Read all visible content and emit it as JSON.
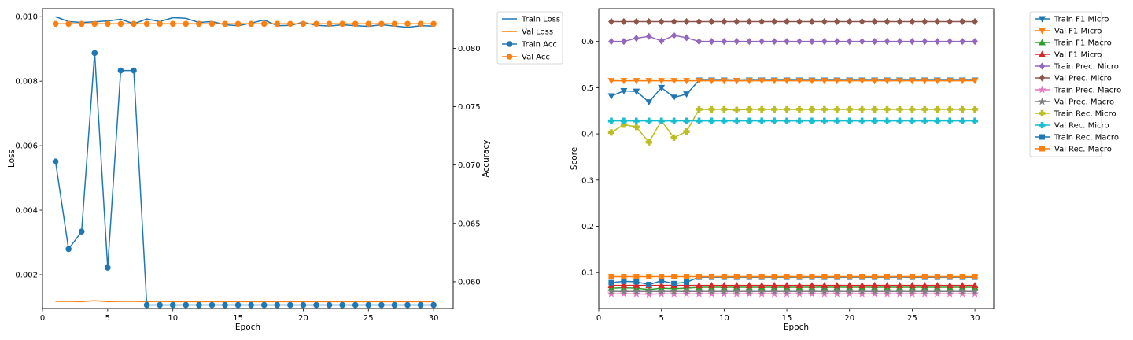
{
  "chart_data": [
    {
      "type": "line",
      "xlabel": "Epoch",
      "ylabel": "Loss",
      "ylabel_right": "Accuracy",
      "xlim": [
        0.0,
        31.5
      ],
      "ylim": [
        0.00095,
        0.01025
      ],
      "ylim_right": [
        0.0577,
        0.0834
      ],
      "xticks": [
        0,
        5,
        10,
        15,
        20,
        25,
        30
      ],
      "yticks": [
        0.002,
        0.004,
        0.006,
        0.008,
        0.01
      ],
      "ytick_labels": [
        "0.002",
        "0.004",
        "0.006",
        "0.008",
        "0.010"
      ],
      "yticks_right": [
        0.06,
        0.065,
        0.07,
        0.075,
        0.08
      ],
      "ytick_labels_right": [
        "0.060",
        "0.065",
        "0.070",
        "0.075",
        "0.080"
      ],
      "legend_position": "outside-right-top",
      "x": [
        1,
        2,
        3,
        4,
        5,
        6,
        7,
        8,
        9,
        10,
        11,
        12,
        13,
        14,
        15,
        16,
        17,
        18,
        19,
        20,
        21,
        22,
        23,
        24,
        25,
        26,
        27,
        28,
        29,
        30
      ],
      "series": [
        {
          "name": "Train Loss",
          "axis": "left",
          "color": "#1f77b4",
          "marker": "none",
          "values": [
            0.01,
            0.00985,
            0.00982,
            0.00984,
            0.00987,
            0.00992,
            0.00978,
            0.00993,
            0.00985,
            0.00997,
            0.00995,
            0.00982,
            0.00985,
            0.00975,
            0.00972,
            0.0098,
            0.0099,
            0.00972,
            0.00973,
            0.00983,
            0.00973,
            0.00971,
            0.00975,
            0.00972,
            0.0097,
            0.00975,
            0.00971,
            0.00967,
            0.00972,
            0.00971
          ]
        },
        {
          "name": "Val Loss",
          "axis": "left",
          "color": "#ff7f0e",
          "marker": "none",
          "values": [
            0.00117,
            0.00117,
            0.00116,
            0.00119,
            0.00116,
            0.00117,
            0.00117,
            0.00116,
            0.00117,
            0.00116,
            0.00116,
            0.00116,
            0.00116,
            0.00116,
            0.00116,
            0.00116,
            0.00116,
            0.00116,
            0.00116,
            0.00116,
            0.00116,
            0.00116,
            0.00116,
            0.00116,
            0.00116,
            0.00116,
            0.00116,
            0.00116,
            0.00116,
            0.00116
          ]
        },
        {
          "name": "Train Acc",
          "axis": "right",
          "color": "#1f77b4",
          "marker": "circle",
          "values": [
            0.0703,
            0.0628,
            0.0643,
            0.0796,
            0.0612,
            0.0781,
            0.0781,
            0.058,
            0.058,
            0.058,
            0.058,
            0.058,
            0.058,
            0.058,
            0.058,
            0.058,
            0.058,
            0.058,
            0.058,
            0.058,
            0.058,
            0.058,
            0.058,
            0.058,
            0.058,
            0.058,
            0.058,
            0.058,
            0.058,
            0.058
          ]
        },
        {
          "name": "Val Acc",
          "axis": "right",
          "color": "#ff7f0e",
          "marker": "circle",
          "values": [
            0.0821,
            0.0821,
            0.0821,
            0.0821,
            0.0821,
            0.0821,
            0.0821,
            0.0821,
            0.0821,
            0.0821,
            0.0821,
            0.0821,
            0.0821,
            0.0821,
            0.0821,
            0.0821,
            0.0821,
            0.0821,
            0.0821,
            0.0821,
            0.0821,
            0.0821,
            0.0821,
            0.0821,
            0.0821,
            0.0821,
            0.0821,
            0.0821,
            0.0821,
            0.0821
          ]
        }
      ]
    },
    {
      "type": "line",
      "xlabel": "Epoch",
      "ylabel": "Score",
      "xlim": [
        0.0,
        31.5
      ],
      "ylim": [
        0.022,
        0.671
      ],
      "xticks": [
        0,
        5,
        10,
        15,
        20,
        25,
        30
      ],
      "yticks": [
        0.1,
        0.2,
        0.3,
        0.4,
        0.5,
        0.6
      ],
      "ytick_labels": [
        "0.1",
        "0.2",
        "0.3",
        "0.4",
        "0.5",
        "0.6"
      ],
      "legend_position": "outside-right-top",
      "x": [
        1,
        2,
        3,
        4,
        5,
        6,
        7,
        8,
        9,
        10,
        11,
        12,
        13,
        14,
        15,
        16,
        17,
        18,
        19,
        20,
        21,
        22,
        23,
        24,
        25,
        26,
        27,
        28,
        29,
        30
      ],
      "series": [
        {
          "name": "Train F1 Micro",
          "color": "#1f77b4",
          "marker": "triangle_down",
          "values": [
            0.482,
            0.493,
            0.492,
            0.469,
            0.5,
            0.479,
            0.486,
            0.516,
            0.516,
            0.516,
            0.515,
            0.516,
            0.516,
            0.516,
            0.516,
            0.516,
            0.516,
            0.516,
            0.516,
            0.516,
            0.516,
            0.516,
            0.516,
            0.516,
            0.516,
            0.516,
            0.516,
            0.516,
            0.516,
            0.516
          ]
        },
        {
          "name": "Val F1 Micro",
          "color": "#ff7f0e",
          "marker": "triangle_down",
          "values": [
            0.515,
            0.515,
            0.515,
            0.515,
            0.515,
            0.515,
            0.515,
            0.515,
            0.515,
            0.515,
            0.515,
            0.515,
            0.515,
            0.515,
            0.515,
            0.515,
            0.515,
            0.515,
            0.515,
            0.515,
            0.515,
            0.515,
            0.515,
            0.515,
            0.515,
            0.515,
            0.515,
            0.515,
            0.515,
            0.515
          ]
        },
        {
          "name": "Train F1 Macro",
          "color": "#2ca02c",
          "marker": "triangle_up",
          "values": [
            0.066,
            0.067,
            0.066,
            0.063,
            0.066,
            0.065,
            0.066,
            0.068,
            0.068,
            0.068,
            0.068,
            0.068,
            0.068,
            0.068,
            0.068,
            0.068,
            0.068,
            0.068,
            0.068,
            0.068,
            0.068,
            0.068,
            0.068,
            0.068,
            0.068,
            0.068,
            0.068,
            0.068,
            0.068,
            0.068
          ]
        },
        {
          "name": "Val F1 Micro",
          "color": "#d62728",
          "marker": "triangle_up",
          "values": [
            0.072,
            0.072,
            0.072,
            0.072,
            0.072,
            0.072,
            0.072,
            0.072,
            0.072,
            0.072,
            0.072,
            0.072,
            0.072,
            0.072,
            0.072,
            0.072,
            0.072,
            0.072,
            0.072,
            0.072,
            0.072,
            0.072,
            0.072,
            0.072,
            0.072,
            0.072,
            0.072,
            0.072,
            0.072,
            0.072
          ]
        },
        {
          "name": "Train Prec. Micro",
          "color": "#9467bd",
          "marker": "diamond",
          "values": [
            0.6,
            0.6,
            0.607,
            0.611,
            0.601,
            0.613,
            0.608,
            0.6,
            0.6,
            0.6,
            0.6,
            0.6,
            0.6,
            0.6,
            0.6,
            0.6,
            0.6,
            0.6,
            0.6,
            0.6,
            0.6,
            0.6,
            0.6,
            0.6,
            0.6,
            0.6,
            0.6,
            0.6,
            0.6,
            0.6
          ]
        },
        {
          "name": "Val Prec. Micro",
          "color": "#8c564b",
          "marker": "diamond",
          "values": [
            0.643,
            0.643,
            0.643,
            0.643,
            0.643,
            0.643,
            0.643,
            0.643,
            0.643,
            0.643,
            0.643,
            0.643,
            0.643,
            0.643,
            0.643,
            0.643,
            0.643,
            0.643,
            0.643,
            0.643,
            0.643,
            0.643,
            0.643,
            0.643,
            0.643,
            0.643,
            0.643,
            0.643,
            0.643,
            0.643
          ]
        },
        {
          "name": "Train Prec. Macro",
          "color": "#e377c2",
          "marker": "star",
          "values": [
            0.054,
            0.054,
            0.054,
            0.053,
            0.054,
            0.054,
            0.054,
            0.054,
            0.054,
            0.054,
            0.054,
            0.054,
            0.054,
            0.054,
            0.054,
            0.054,
            0.054,
            0.054,
            0.054,
            0.054,
            0.054,
            0.054,
            0.054,
            0.054,
            0.054,
            0.054,
            0.054,
            0.054,
            0.054,
            0.054
          ]
        },
        {
          "name": "Val Prec. Macro",
          "color": "#7f7f7f",
          "marker": "star",
          "values": [
            0.059,
            0.059,
            0.059,
            0.059,
            0.059,
            0.059,
            0.059,
            0.059,
            0.059,
            0.059,
            0.059,
            0.059,
            0.059,
            0.059,
            0.059,
            0.059,
            0.059,
            0.059,
            0.059,
            0.059,
            0.059,
            0.059,
            0.059,
            0.059,
            0.059,
            0.059,
            0.059,
            0.059,
            0.059,
            0.059
          ]
        },
        {
          "name": "Train Rec. Micro",
          "color": "#bcbd22",
          "marker": "plus",
          "values": [
            0.403,
            0.42,
            0.415,
            0.382,
            0.428,
            0.392,
            0.405,
            0.453,
            0.453,
            0.453,
            0.452,
            0.453,
            0.453,
            0.453,
            0.453,
            0.453,
            0.453,
            0.453,
            0.453,
            0.453,
            0.453,
            0.453,
            0.453,
            0.453,
            0.453,
            0.453,
            0.453,
            0.453,
            0.453,
            0.453
          ]
        },
        {
          "name": "Val Rec. Micro",
          "color": "#17becf",
          "marker": "plus",
          "values": [
            0.428,
            0.428,
            0.428,
            0.428,
            0.428,
            0.428,
            0.428,
            0.428,
            0.428,
            0.428,
            0.428,
            0.428,
            0.428,
            0.428,
            0.428,
            0.428,
            0.428,
            0.428,
            0.428,
            0.428,
            0.428,
            0.428,
            0.428,
            0.428,
            0.428,
            0.428,
            0.428,
            0.428,
            0.428,
            0.428
          ]
        },
        {
          "name": "Train Rec. Macro",
          "color": "#1f77b4",
          "marker": "square",
          "values": [
            0.078,
            0.081,
            0.08,
            0.074,
            0.082,
            0.076,
            0.079,
            0.09,
            0.09,
            0.09,
            0.09,
            0.09,
            0.09,
            0.09,
            0.09,
            0.09,
            0.09,
            0.09,
            0.09,
            0.09,
            0.09,
            0.09,
            0.09,
            0.09,
            0.09,
            0.09,
            0.09,
            0.09,
            0.09,
            0.09
          ]
        },
        {
          "name": "Val Rec. Macro",
          "color": "#ff7f0e",
          "marker": "square",
          "values": [
            0.091,
            0.091,
            0.091,
            0.091,
            0.091,
            0.091,
            0.091,
            0.091,
            0.091,
            0.091,
            0.091,
            0.091,
            0.091,
            0.091,
            0.091,
            0.091,
            0.091,
            0.091,
            0.091,
            0.091,
            0.091,
            0.091,
            0.091,
            0.091,
            0.091,
            0.091,
            0.091,
            0.091,
            0.091,
            0.091
          ]
        }
      ]
    }
  ]
}
